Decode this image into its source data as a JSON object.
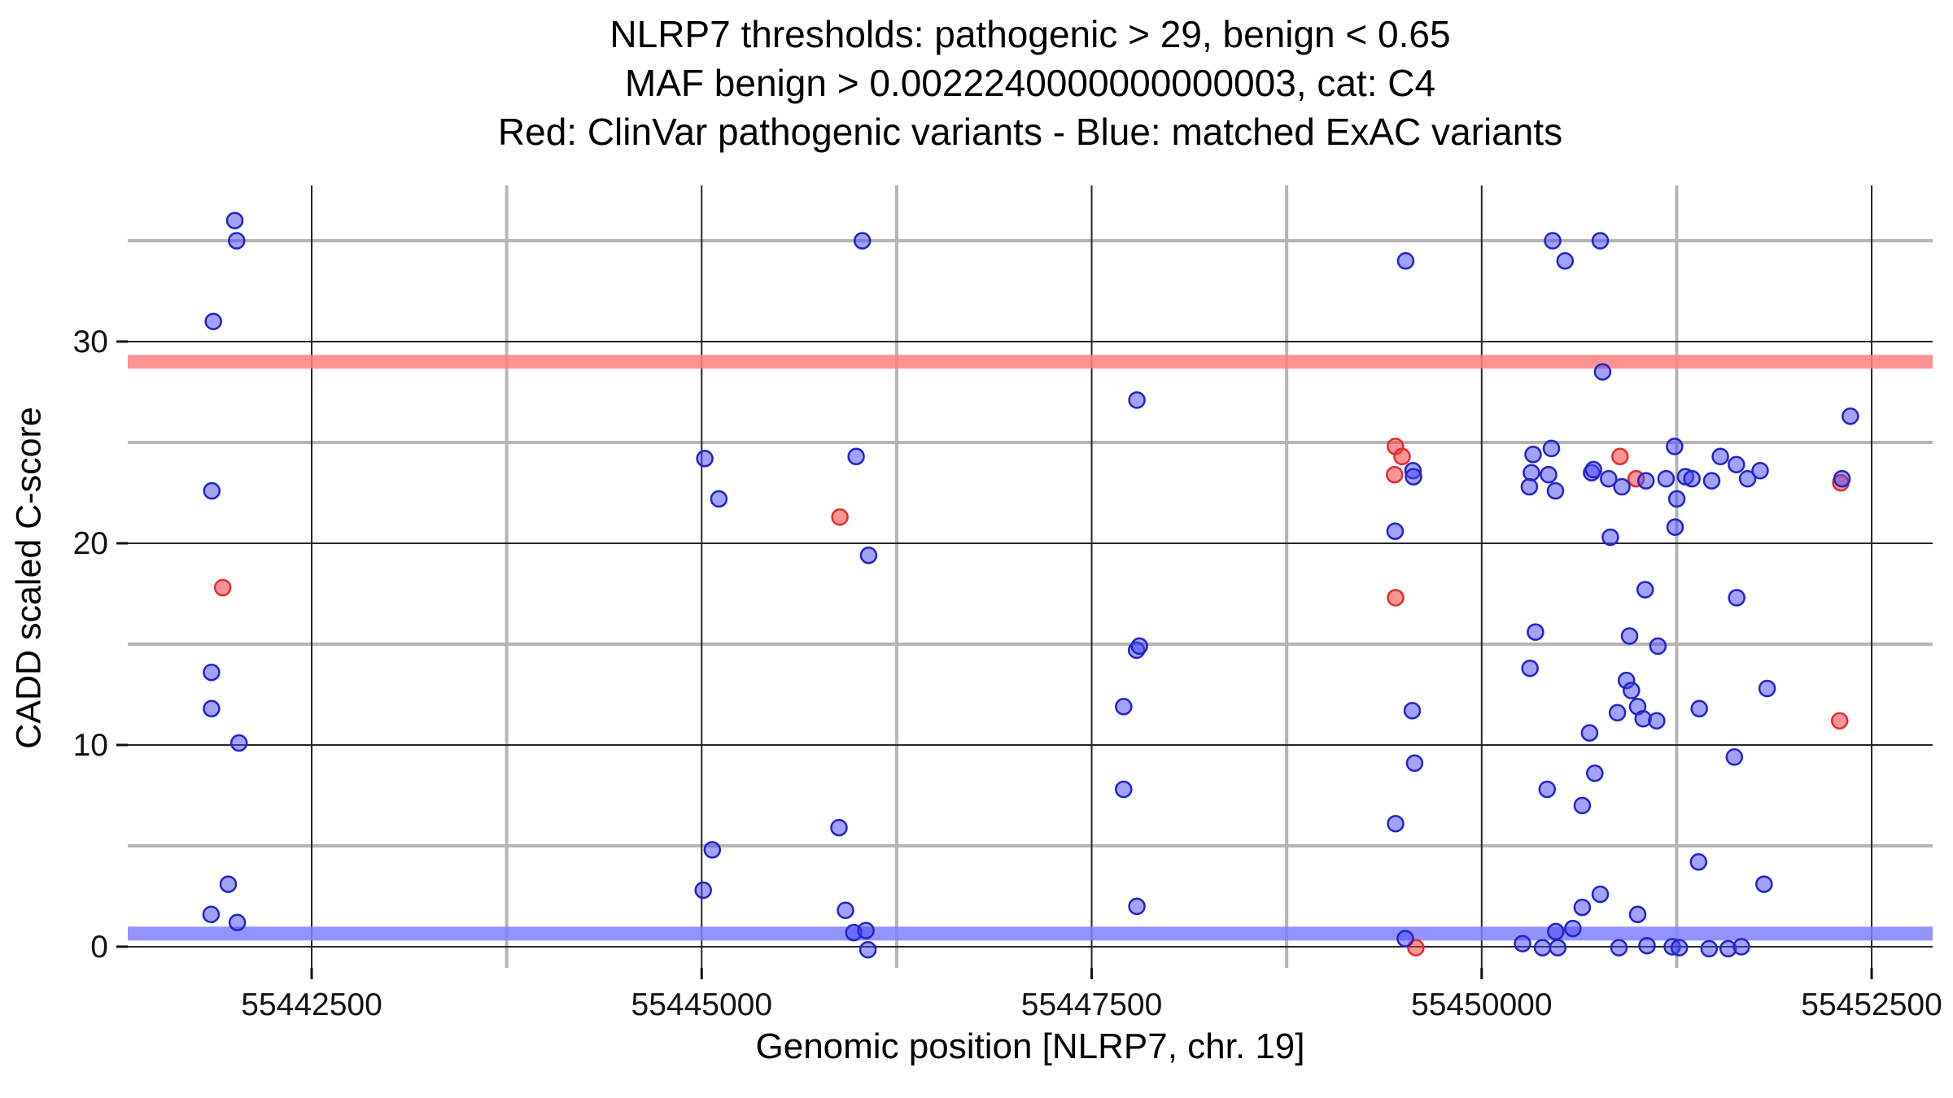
{
  "title": {
    "line1": "NLRP7 thresholds: pathogenic > 29, benign < 0.65",
    "line2": "MAF benign > 0.0022240000000000003, cat: C4",
    "line3": "Red: ClinVar pathogenic variants - Blue: matched ExAC variants"
  },
  "chart_data": {
    "type": "scatter",
    "title": "NLRP7 thresholds: pathogenic > 29, benign < 0.65 | MAF benign > 0.0022240000000000003, cat: C4 | Red: ClinVar pathogenic variants - Blue: matched ExAC variants",
    "xlabel": "Genomic position [NLRP7, chr. 19]",
    "ylabel": "CADD scaled C-score",
    "xlim": [
      55441321,
      55452891
    ],
    "ylim": [
      -1.05,
      37.74
    ],
    "grid": "major-dark-minor-gray",
    "legend_position": "none",
    "background": "#ffffff",
    "colors": {
      "major_gridline": "#262626",
      "minor_gridline": "#b5b5b5",
      "pathogenic_band": "#ff8080",
      "benign_band": "#8080ff",
      "pathogenic_point_stroke": "#e12e2e",
      "pathogenic_point_fill": "rgba(250,60,60,0.55)",
      "exac_point_stroke": "#2323c8",
      "exac_point_fill": "rgba(70,70,245,0.50)"
    },
    "x_ticks": [
      {
        "v": 55442500,
        "label": "55442500"
      },
      {
        "v": 55445000,
        "label": "55445000"
      },
      {
        "v": 55447500,
        "label": "55447500"
      },
      {
        "v": 55450000,
        "label": "55450000"
      },
      {
        "v": 55452500,
        "label": "55452500"
      }
    ],
    "y_ticks": [
      {
        "v": 0,
        "label": "0"
      },
      {
        "v": 10,
        "label": "10"
      },
      {
        "v": 20,
        "label": "20"
      },
      {
        "v": 30,
        "label": "30"
      }
    ],
    "x_minor": [
      55443750,
      55446250,
      55448750,
      55451250
    ],
    "y_minor": [
      5,
      15,
      25,
      35
    ],
    "hlines": [
      {
        "y": 29,
        "label": "pathogenic threshold",
        "color": "#ff8080"
      },
      {
        "y": 0.65,
        "label": "benign threshold",
        "color": "#8080ff"
      }
    ],
    "series": [
      {
        "name": "ClinVar pathogenic variants",
        "color": "red",
        "points": [
          [
            55441930,
            17.8
          ],
          [
            55445886,
            21.3
          ],
          [
            55449447,
            24.8
          ],
          [
            55449490,
            24.3
          ],
          [
            55449442,
            23.4
          ],
          [
            55449448,
            17.3
          ],
          [
            55449578,
            -0.05
          ],
          [
            55450887,
            24.3
          ],
          [
            55450990,
            23.2
          ],
          [
            55452302,
            23.0
          ],
          [
            55452295,
            11.2
          ]
        ]
      },
      {
        "name": "matched ExAC variants",
        "color": "blue",
        "points": [
          [
            55442007,
            36.0
          ],
          [
            55442019,
            35.0
          ],
          [
            55441870,
            31.0
          ],
          [
            55441860,
            22.6
          ],
          [
            55441858,
            13.6
          ],
          [
            55441858,
            11.8
          ],
          [
            55442034,
            10.1
          ],
          [
            55441965,
            3.1
          ],
          [
            55441855,
            1.6
          ],
          [
            55442023,
            1.2
          ],
          [
            55446030,
            35.0
          ],
          [
            55445020,
            24.2
          ],
          [
            55445110,
            22.2
          ],
          [
            55445990,
            24.3
          ],
          [
            55446070,
            19.4
          ],
          [
            55445880,
            5.9
          ],
          [
            55445068,
            4.8
          ],
          [
            55445010,
            2.8
          ],
          [
            55445922,
            1.8
          ],
          [
            55445975,
            0.7
          ],
          [
            55446053,
            0.8
          ],
          [
            55446066,
            -0.15
          ],
          [
            55447790,
            27.1
          ],
          [
            55447788,
            14.7
          ],
          [
            55447806,
            14.9
          ],
          [
            55447705,
            11.9
          ],
          [
            55447705,
            7.8
          ],
          [
            55447790,
            2.0
          ],
          [
            55449513,
            34.0
          ],
          [
            55449560,
            23.6
          ],
          [
            55449563,
            23.3
          ],
          [
            55449445,
            20.6
          ],
          [
            55449555,
            11.7
          ],
          [
            55449570,
            9.1
          ],
          [
            55449448,
            6.1
          ],
          [
            55449510,
            0.4
          ],
          [
            55450455,
            35.0
          ],
          [
            55450535,
            34.0
          ],
          [
            55450760,
            35.0
          ],
          [
            55450775,
            28.5
          ],
          [
            55450330,
            24.4
          ],
          [
            55450447,
            24.7
          ],
          [
            55450319,
            23.5
          ],
          [
            55450306,
            22.8
          ],
          [
            55450429,
            23.4
          ],
          [
            55450473,
            22.6
          ],
          [
            55450705,
            23.5
          ],
          [
            55450717,
            23.65
          ],
          [
            55450814,
            23.2
          ],
          [
            55450899,
            22.8
          ],
          [
            55451053,
            23.1
          ],
          [
            55451182,
            23.2
          ],
          [
            55451237,
            24.8
          ],
          [
            55451251,
            22.2
          ],
          [
            55451307,
            23.3
          ],
          [
            55451348,
            23.2
          ],
          [
            55451475,
            23.1
          ],
          [
            55451530,
            24.3
          ],
          [
            55451633,
            23.9
          ],
          [
            55451705,
            23.2
          ],
          [
            55451785,
            23.6
          ],
          [
            55452310,
            23.2
          ],
          [
            55452363,
            26.3
          ],
          [
            55450825,
            20.3
          ],
          [
            55451240,
            20.8
          ],
          [
            55451048,
            17.7
          ],
          [
            55451635,
            17.3
          ],
          [
            55450345,
            15.6
          ],
          [
            55450948,
            15.4
          ],
          [
            55451130,
            14.9
          ],
          [
            55450310,
            13.8
          ],
          [
            55450928,
            13.2
          ],
          [
            55450960,
            12.7
          ],
          [
            55451000,
            11.9
          ],
          [
            55450870,
            11.6
          ],
          [
            55451035,
            11.3
          ],
          [
            55451122,
            11.2
          ],
          [
            55451395,
            11.8
          ],
          [
            55451830,
            12.8
          ],
          [
            55450692,
            10.6
          ],
          [
            55450725,
            8.6
          ],
          [
            55451620,
            9.4
          ],
          [
            55450420,
            7.8
          ],
          [
            55450645,
            7.0
          ],
          [
            55450760,
            2.6
          ],
          [
            55450645,
            1.95
          ],
          [
            55451000,
            1.6
          ],
          [
            55451390,
            4.2
          ],
          [
            55451810,
            3.1
          ],
          [
            55450262,
            0.15
          ],
          [
            55450390,
            -0.05
          ],
          [
            55450475,
            0.75
          ],
          [
            55450488,
            -0.05
          ],
          [
            55450585,
            0.9
          ],
          [
            55450880,
            -0.05
          ],
          [
            55451060,
            0.05
          ],
          [
            55451222,
            0.0
          ],
          [
            55451267,
            -0.05
          ],
          [
            55451458,
            -0.1
          ],
          [
            55451580,
            -0.1
          ],
          [
            55451665,
            0.0
          ]
        ]
      }
    ]
  }
}
